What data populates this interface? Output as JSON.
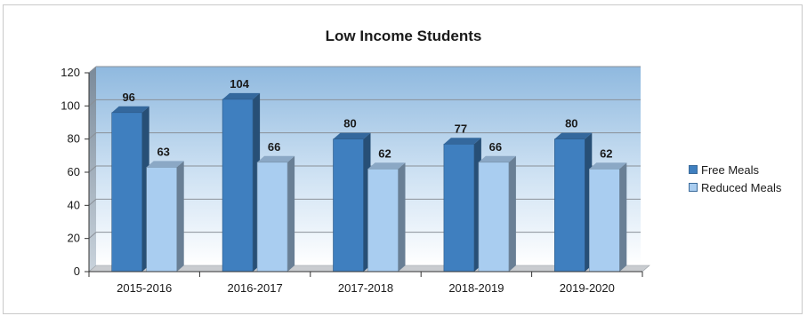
{
  "chart_data": {
    "type": "bar",
    "title": "Low Income Students",
    "categories": [
      "2015-2016",
      "2016-2017",
      "2017-2018",
      "2018-2019",
      "2019-2020"
    ],
    "series": [
      {
        "name": "Free Meals",
        "values": [
          96,
          104,
          80,
          77,
          80
        ],
        "color": "#3f7fbf"
      },
      {
        "name": "Reduced Meals",
        "values": [
          63,
          66,
          62,
          66,
          62
        ],
        "color": "#a9cdf0"
      }
    ],
    "ylim": [
      0,
      120
    ],
    "yticks": [
      0,
      20,
      40,
      60,
      80,
      100,
      120
    ],
    "grid": true,
    "legend_position": "right",
    "style": "3d-clustered-column"
  }
}
